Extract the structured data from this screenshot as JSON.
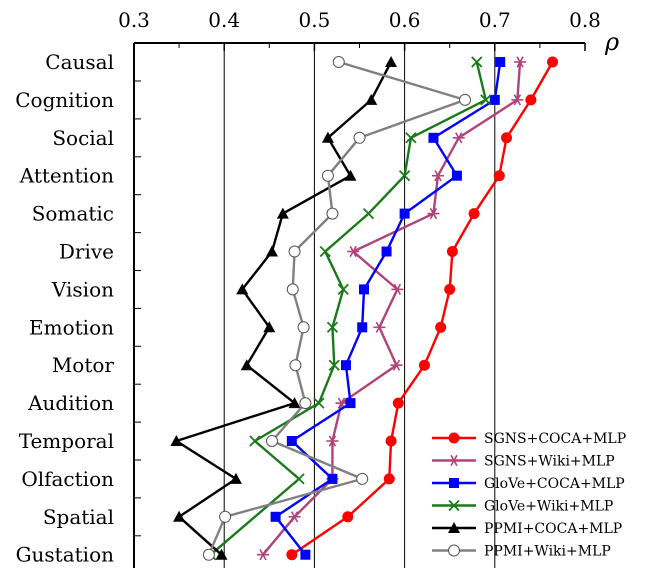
{
  "chart_data": {
    "type": "line",
    "xlabel": "ρ",
    "xlim": [
      0.3,
      0.8
    ],
    "xticks": [
      "0.3",
      "0.4",
      "0.5",
      "0.6",
      "0.7",
      "0.8"
    ],
    "categories": [
      "Causal",
      "Cognition",
      "Social",
      "Attention",
      "Somatic",
      "Drive",
      "Vision",
      "Emotion",
      "Motor",
      "Audition",
      "Temporal",
      "Olfaction",
      "Spatial",
      "Gustation"
    ],
    "grid": "vertical lines at 0.4, 0.5, 0.6, 0.7",
    "legend_position": "bottom-right",
    "series": [
      {
        "name": "SGNS+COCA+MLP",
        "color": "#ff0000",
        "marker": "circle-filled",
        "values": [
          0.764,
          0.74,
          0.713,
          0.705,
          0.677,
          0.653,
          0.65,
          0.64,
          0.622,
          0.593,
          0.585,
          0.583,
          0.537,
          0.475
        ]
      },
      {
        "name": "SGNS+Wiki+MLP",
        "color": "#b0447a",
        "marker": "star",
        "values": [
          0.728,
          0.725,
          0.66,
          0.637,
          0.632,
          0.543,
          0.592,
          0.572,
          0.591,
          0.53,
          0.52,
          0.52,
          0.478,
          0.443
        ]
      },
      {
        "name": "GloVe+COCA+MLP",
        "color": "#0000ff",
        "marker": "square-filled",
        "values": [
          0.706,
          0.7,
          0.632,
          0.658,
          0.6,
          0.58,
          0.555,
          0.553,
          0.535,
          0.54,
          0.475,
          0.52,
          0.457,
          0.49
        ]
      },
      {
        "name": "GloVe+Wiki+MLP",
        "color": "#1a7a1a",
        "marker": "x",
        "values": [
          0.68,
          0.69,
          0.607,
          0.6,
          0.56,
          0.512,
          0.532,
          0.52,
          0.522,
          0.505,
          0.434,
          0.483,
          null,
          0.385
        ]
      },
      {
        "name": "PPMI+COCA+MLP",
        "color": "#000000",
        "marker": "triangle-filled",
        "values": [
          0.585,
          0.563,
          0.515,
          0.54,
          0.465,
          0.453,
          0.42,
          0.45,
          0.425,
          0.478,
          0.347,
          0.413,
          0.35,
          0.397
        ]
      },
      {
        "name": "PPMI+Wiki+MLP",
        "color": "#808080",
        "marker": "circle-open",
        "values": [
          0.527,
          0.667,
          0.55,
          0.515,
          0.52,
          0.478,
          0.476,
          0.488,
          0.479,
          0.49,
          0.453,
          0.553,
          0.401,
          0.383
        ]
      }
    ]
  }
}
